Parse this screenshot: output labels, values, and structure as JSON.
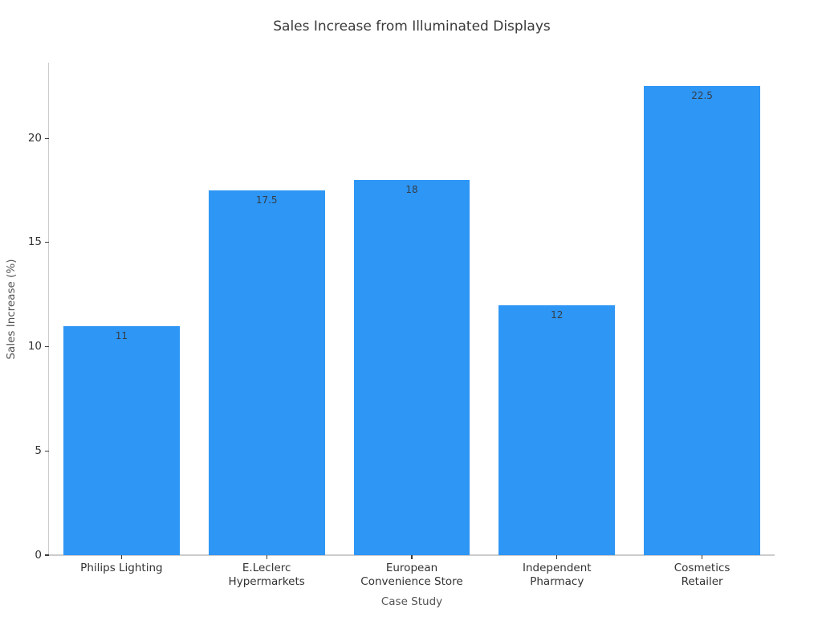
{
  "chart_data": {
    "type": "bar",
    "title": "Sales Increase from Illuminated Displays",
    "xlabel": "Case Study",
    "ylabel": "Sales Increase (%)",
    "categories": [
      "Philips Lighting",
      "E.Leclerc\nHypermarkets",
      "European\nConvenience Store",
      "Independent\nPharmacy",
      "Cosmetics Retailer"
    ],
    "values": [
      11,
      17.5,
      18,
      12,
      22.5
    ],
    "bar_labels": [
      "11",
      "17.5",
      "18",
      "12",
      "22.5"
    ],
    "yticks": [
      0,
      5,
      10,
      15,
      20
    ],
    "ylim": [
      0,
      23.63
    ],
    "bar_width_fraction": 0.8,
    "grid": false,
    "legend_position": "none",
    "colors": {
      "background": "#ffffff",
      "bar": "#2E96F5",
      "title_text": "#3a3a3a",
      "tick_text": "#333333",
      "tick_mark": "#3a3a3a",
      "axis_line": "#cccccc",
      "axis_label_text": "#555555",
      "bar_value_text": "#333d47"
    }
  }
}
